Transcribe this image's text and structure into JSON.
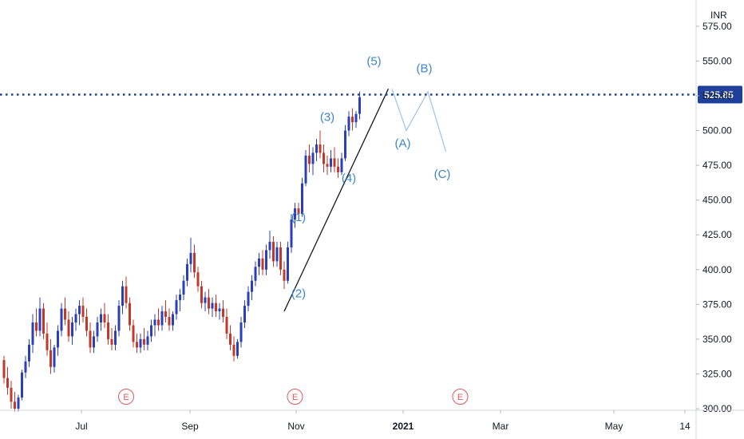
{
  "chart_data": {
    "type": "candlestick",
    "currency": "INR",
    "y_axis": {
      "min": 300,
      "max": 580,
      "ticks": [
        "300.00",
        "325.00",
        "350.00",
        "375.00",
        "400.00",
        "425.00",
        "450.00",
        "475.00",
        "500.00",
        "525.00",
        "550.00",
        "575.00"
      ]
    },
    "x_axis": {
      "ticks": [
        {
          "label": "Jul",
          "bold": false
        },
        {
          "label": "Sep",
          "bold": false
        },
        {
          "label": "Nov",
          "bold": false
        },
        {
          "label": "2021",
          "bold": true
        },
        {
          "label": "Mar",
          "bold": false
        },
        {
          "label": "May",
          "bold": false
        },
        {
          "label": "14",
          "bold": false
        }
      ]
    },
    "last_price": {
      "label": "525.85",
      "value": 525.85
    },
    "candles": [
      {
        "o": 335,
        "h": 338,
        "l": 318,
        "c": 322
      },
      {
        "o": 322,
        "h": 330,
        "l": 310,
        "c": 315
      },
      {
        "o": 315,
        "h": 320,
        "l": 300,
        "c": 305
      },
      {
        "o": 305,
        "h": 312,
        "l": 298,
        "c": 300
      },
      {
        "o": 300,
        "h": 310,
        "l": 298,
        "c": 308
      },
      {
        "o": 308,
        "h": 328,
        "l": 306,
        "c": 326
      },
      {
        "o": 326,
        "h": 338,
        "l": 322,
        "c": 334
      },
      {
        "o": 334,
        "h": 350,
        "l": 330,
        "c": 346
      },
      {
        "o": 346,
        "h": 368,
        "l": 340,
        "c": 362
      },
      {
        "o": 362,
        "h": 372,
        "l": 352,
        "c": 356
      },
      {
        "o": 356,
        "h": 380,
        "l": 352,
        "c": 372
      },
      {
        "o": 372,
        "h": 376,
        "l": 350,
        "c": 354
      },
      {
        "o": 354,
        "h": 362,
        "l": 338,
        "c": 342
      },
      {
        "o": 342,
        "h": 350,
        "l": 325,
        "c": 330
      },
      {
        "o": 330,
        "h": 346,
        "l": 326,
        "c": 344
      },
      {
        "o": 344,
        "h": 360,
        "l": 338,
        "c": 356
      },
      {
        "o": 356,
        "h": 376,
        "l": 352,
        "c": 372
      },
      {
        "o": 372,
        "h": 380,
        "l": 360,
        "c": 364
      },
      {
        "o": 364,
        "h": 370,
        "l": 348,
        "c": 352
      },
      {
        "o": 352,
        "h": 366,
        "l": 346,
        "c": 362
      },
      {
        "o": 362,
        "h": 372,
        "l": 356,
        "c": 368
      },
      {
        "o": 368,
        "h": 378,
        "l": 360,
        "c": 374
      },
      {
        "o": 374,
        "h": 380,
        "l": 362,
        "c": 366
      },
      {
        "o": 366,
        "h": 372,
        "l": 352,
        "c": 356
      },
      {
        "o": 356,
        "h": 362,
        "l": 340,
        "c": 344
      },
      {
        "o": 344,
        "h": 356,
        "l": 340,
        "c": 352
      },
      {
        "o": 352,
        "h": 366,
        "l": 348,
        "c": 362
      },
      {
        "o": 362,
        "h": 372,
        "l": 356,
        "c": 368
      },
      {
        "o": 368,
        "h": 376,
        "l": 358,
        "c": 362
      },
      {
        "o": 362,
        "h": 368,
        "l": 346,
        "c": 350
      },
      {
        "o": 350,
        "h": 358,
        "l": 342,
        "c": 346
      },
      {
        "o": 346,
        "h": 360,
        "l": 342,
        "c": 356
      },
      {
        "o": 356,
        "h": 378,
        "l": 352,
        "c": 374
      },
      {
        "o": 374,
        "h": 392,
        "l": 368,
        "c": 388
      },
      {
        "o": 388,
        "h": 395,
        "l": 372,
        "c": 376
      },
      {
        "o": 376,
        "h": 380,
        "l": 356,
        "c": 360
      },
      {
        "o": 360,
        "h": 364,
        "l": 344,
        "c": 348
      },
      {
        "o": 348,
        "h": 354,
        "l": 340,
        "c": 344
      },
      {
        "o": 344,
        "h": 354,
        "l": 340,
        "c": 350
      },
      {
        "o": 350,
        "h": 358,
        "l": 342,
        "c": 346
      },
      {
        "o": 346,
        "h": 356,
        "l": 342,
        "c": 352
      },
      {
        "o": 352,
        "h": 364,
        "l": 348,
        "c": 360
      },
      {
        "o": 360,
        "h": 368,
        "l": 352,
        "c": 364
      },
      {
        "o": 364,
        "h": 372,
        "l": 356,
        "c": 360
      },
      {
        "o": 360,
        "h": 374,
        "l": 356,
        "c": 370
      },
      {
        "o": 370,
        "h": 378,
        "l": 362,
        "c": 366
      },
      {
        "o": 366,
        "h": 372,
        "l": 356,
        "c": 360
      },
      {
        "o": 360,
        "h": 370,
        "l": 356,
        "c": 368
      },
      {
        "o": 368,
        "h": 382,
        "l": 364,
        "c": 378
      },
      {
        "o": 378,
        "h": 386,
        "l": 370,
        "c": 382
      },
      {
        "o": 382,
        "h": 396,
        "l": 378,
        "c": 392
      },
      {
        "o": 392,
        "h": 408,
        "l": 388,
        "c": 404
      },
      {
        "o": 404,
        "h": 423,
        "l": 398,
        "c": 412
      },
      {
        "o": 412,
        "h": 418,
        "l": 394,
        "c": 398
      },
      {
        "o": 398,
        "h": 402,
        "l": 384,
        "c": 388
      },
      {
        "o": 388,
        "h": 392,
        "l": 372,
        "c": 376
      },
      {
        "o": 376,
        "h": 384,
        "l": 370,
        "c": 380
      },
      {
        "o": 380,
        "h": 386,
        "l": 368,
        "c": 372
      },
      {
        "o": 372,
        "h": 380,
        "l": 366,
        "c": 376
      },
      {
        "o": 376,
        "h": 382,
        "l": 366,
        "c": 370
      },
      {
        "o": 370,
        "h": 376,
        "l": 364,
        "c": 372
      },
      {
        "o": 372,
        "h": 378,
        "l": 362,
        "c": 366
      },
      {
        "o": 366,
        "h": 372,
        "l": 350,
        "c": 354
      },
      {
        "o": 354,
        "h": 360,
        "l": 342,
        "c": 346
      },
      {
        "o": 346,
        "h": 352,
        "l": 334,
        "c": 338
      },
      {
        "o": 338,
        "h": 350,
        "l": 336,
        "c": 348
      },
      {
        "o": 348,
        "h": 366,
        "l": 344,
        "c": 362
      },
      {
        "o": 362,
        "h": 378,
        "l": 358,
        "c": 374
      },
      {
        "o": 374,
        "h": 388,
        "l": 370,
        "c": 384
      },
      {
        "o": 384,
        "h": 396,
        "l": 378,
        "c": 392
      },
      {
        "o": 392,
        "h": 406,
        "l": 388,
        "c": 402
      },
      {
        "o": 402,
        "h": 412,
        "l": 396,
        "c": 408
      },
      {
        "o": 408,
        "h": 414,
        "l": 396,
        "c": 400
      },
      {
        "o": 400,
        "h": 418,
        "l": 396,
        "c": 414
      },
      {
        "o": 414,
        "h": 428,
        "l": 408,
        "c": 420
      },
      {
        "o": 420,
        "h": 424,
        "l": 402,
        "c": 406
      },
      {
        "o": 406,
        "h": 420,
        "l": 402,
        "c": 416
      },
      {
        "o": 416,
        "h": 420,
        "l": 396,
        "c": 400
      },
      {
        "o": 400,
        "h": 406,
        "l": 386,
        "c": 392
      },
      {
        "o": 392,
        "h": 420,
        "l": 390,
        "c": 416
      },
      {
        "o": 416,
        "h": 440,
        "l": 412,
        "c": 436
      },
      {
        "o": 436,
        "h": 448,
        "l": 430,
        "c": 444
      },
      {
        "o": 444,
        "h": 448,
        "l": 436,
        "c": 440
      },
      {
        "o": 440,
        "h": 466,
        "l": 438,
        "c": 462
      },
      {
        "o": 462,
        "h": 486,
        "l": 460,
        "c": 482
      },
      {
        "o": 482,
        "h": 490,
        "l": 470,
        "c": 476
      },
      {
        "o": 476,
        "h": 488,
        "l": 468,
        "c": 484
      },
      {
        "o": 484,
        "h": 494,
        "l": 478,
        "c": 490
      },
      {
        "o": 490,
        "h": 500,
        "l": 480,
        "c": 484
      },
      {
        "o": 484,
        "h": 490,
        "l": 470,
        "c": 476
      },
      {
        "o": 476,
        "h": 482,
        "l": 468,
        "c": 474
      },
      {
        "o": 474,
        "h": 486,
        "l": 470,
        "c": 480
      },
      {
        "o": 480,
        "h": 488,
        "l": 470,
        "c": 474
      },
      {
        "o": 474,
        "h": 480,
        "l": 466,
        "c": 470
      },
      {
        "o": 470,
        "h": 484,
        "l": 468,
        "c": 480
      },
      {
        "o": 480,
        "h": 504,
        "l": 478,
        "c": 500
      },
      {
        "o": 500,
        "h": 514,
        "l": 496,
        "c": 510
      },
      {
        "o": 510,
        "h": 516,
        "l": 500,
        "c": 506
      },
      {
        "o": 506,
        "h": 514,
        "l": 502,
        "c": 512
      },
      {
        "o": 512,
        "h": 528,
        "l": 508,
        "c": 524
      }
    ],
    "annotations": {
      "waves": [
        {
          "label": "(1)",
          "date_index": 82,
          "price": 435
        },
        {
          "label": "(2)",
          "date_index": 82,
          "price": 380
        },
        {
          "label": "(3)",
          "date_index": 90,
          "price": 507
        },
        {
          "label": "(4)",
          "date_index": 96,
          "price": 463
        },
        {
          "label": "(5)",
          "date_index": 103,
          "price": 547
        },
        {
          "label": "(A)",
          "date_index": 111,
          "price": 488
        },
        {
          "label": "(B)",
          "date_index": 117,
          "price": 542
        },
        {
          "label": "(C)",
          "date_index": 122,
          "price": 466
        }
      ],
      "earnings": [
        {
          "label": "E",
          "date_index": 34
        },
        {
          "label": "E",
          "date_index": 81
        },
        {
          "label": "E",
          "date_index": 127
        }
      ],
      "trendline": {
        "from": {
          "date_index": 78,
          "price": 370
        },
        "to": {
          "date_index": 107,
          "price": 530
        }
      },
      "projection": [
        {
          "date_index": 108,
          "price": 530
        },
        {
          "date_index": 112,
          "price": 500
        },
        {
          "date_index": 118,
          "price": 528
        },
        {
          "date_index": 123,
          "price": 485
        }
      ]
    }
  }
}
